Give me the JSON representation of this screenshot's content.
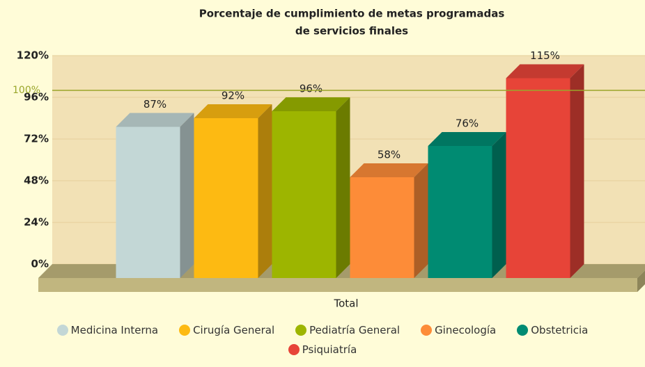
{
  "chart_data": {
    "type": "bar3d",
    "title": [
      "Porcentaje de cumplimiento de metas programadas",
      "de servicios finales"
    ],
    "categories": [
      "Total"
    ],
    "series": [
      {
        "name": "Medicina Interna",
        "color": "#c3d7d6",
        "values": [
          87
        ],
        "value_labels": [
          "87%"
        ]
      },
      {
        "name": "Cirugía General",
        "color": "#fdba12",
        "values": [
          92
        ],
        "value_labels": [
          "92%"
        ]
      },
      {
        "name": "Pediatría General",
        "color": "#9db500",
        "values": [
          96
        ],
        "value_labels": [
          "96%"
        ]
      },
      {
        "name": "Ginecología",
        "color": "#fd8c38",
        "values": [
          58
        ],
        "value_labels": [
          "58%"
        ]
      },
      {
        "name": "Obstetricia",
        "color": "#008b72",
        "values": [
          76
        ],
        "value_labels": [
          "76%"
        ]
      },
      {
        "name": "Psiquiatría",
        "color": "#e74438",
        "values": [
          115
        ],
        "value_labels": [
          "115%"
        ]
      }
    ],
    "ylim": [
      0,
      120
    ],
    "yticks": [
      {
        "value": 0,
        "label": "0%"
      },
      {
        "value": 24,
        "label": "24%"
      },
      {
        "value": 48,
        "label": "48%"
      },
      {
        "value": 72,
        "label": "72%"
      },
      {
        "value": 96,
        "label": "96%"
      },
      {
        "value": 120,
        "label": "120%"
      }
    ],
    "reference_lines": [
      {
        "value": 100,
        "label": "100%",
        "color": "#9aa62a"
      }
    ],
    "grid": true
  }
}
